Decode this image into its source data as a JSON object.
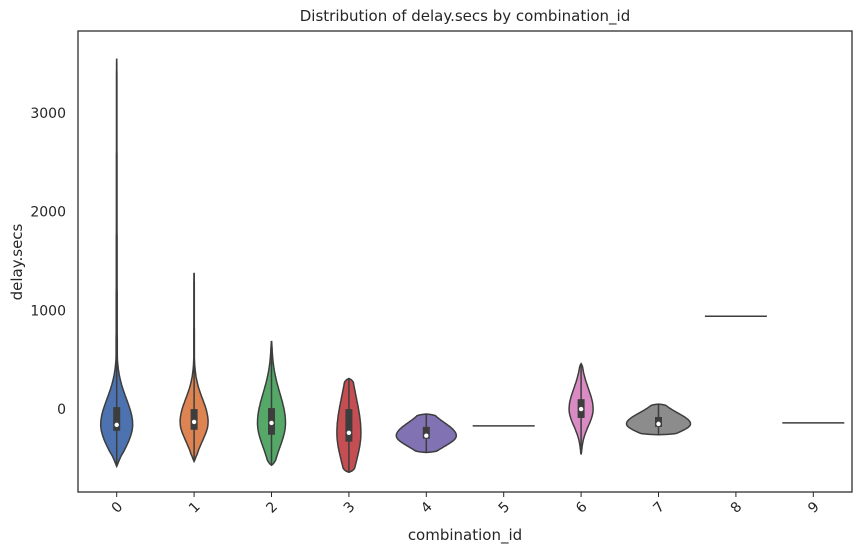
{
  "chart_data": {
    "type": "violin",
    "title": "Distribution of delay.secs by combination_id",
    "xlabel": "combination_id",
    "ylabel": "delay.secs",
    "ylim": [
      -840,
      3830
    ],
    "yticks": [
      0,
      1000,
      2000,
      3000
    ],
    "grid": false,
    "categories": [
      "0",
      "1",
      "2",
      "3",
      "4",
      "5",
      "6",
      "7",
      "8",
      "9"
    ],
    "violins": [
      {
        "category": "0",
        "color": "#4c72b0",
        "min": -580,
        "max": 3550,
        "q1": -220,
        "median": -160,
        "q3": 20
      },
      {
        "category": "1",
        "color": "#dd8452",
        "min": -530,
        "max": 1380,
        "q1": -210,
        "median": -130,
        "q3": 0
      },
      {
        "category": "2",
        "color": "#55a868",
        "min": -570,
        "max": 690,
        "q1": -260,
        "median": -140,
        "q3": 10
      },
      {
        "category": "3",
        "color": "#c44e52",
        "min": -640,
        "max": 310,
        "q1": -330,
        "median": -240,
        "q3": 0
      },
      {
        "category": "4",
        "color": "#8172b3",
        "min": -440,
        "max": -50,
        "q1": -300,
        "median": -270,
        "q3": -180
      },
      {
        "category": "5",
        "color": "#937860",
        "min": -170,
        "max": -170,
        "q1": -170,
        "median": -170,
        "q3": -170
      },
      {
        "category": "6",
        "color": "#da8bc3",
        "min": -460,
        "max": 460,
        "q1": -90,
        "median": 0,
        "q3": 100
      },
      {
        "category": "7",
        "color": "#8c8c8c",
        "min": -260,
        "max": 50,
        "q1": -180,
        "median": -150,
        "q3": -80
      },
      {
        "category": "8",
        "color": "#ccb974",
        "min": 940,
        "max": 940,
        "q1": 940,
        "median": 940,
        "q3": 940
      },
      {
        "category": "9",
        "color": "#64b5cd",
        "min": -140,
        "max": -140,
        "q1": -140,
        "median": -140,
        "q3": -140
      }
    ]
  }
}
